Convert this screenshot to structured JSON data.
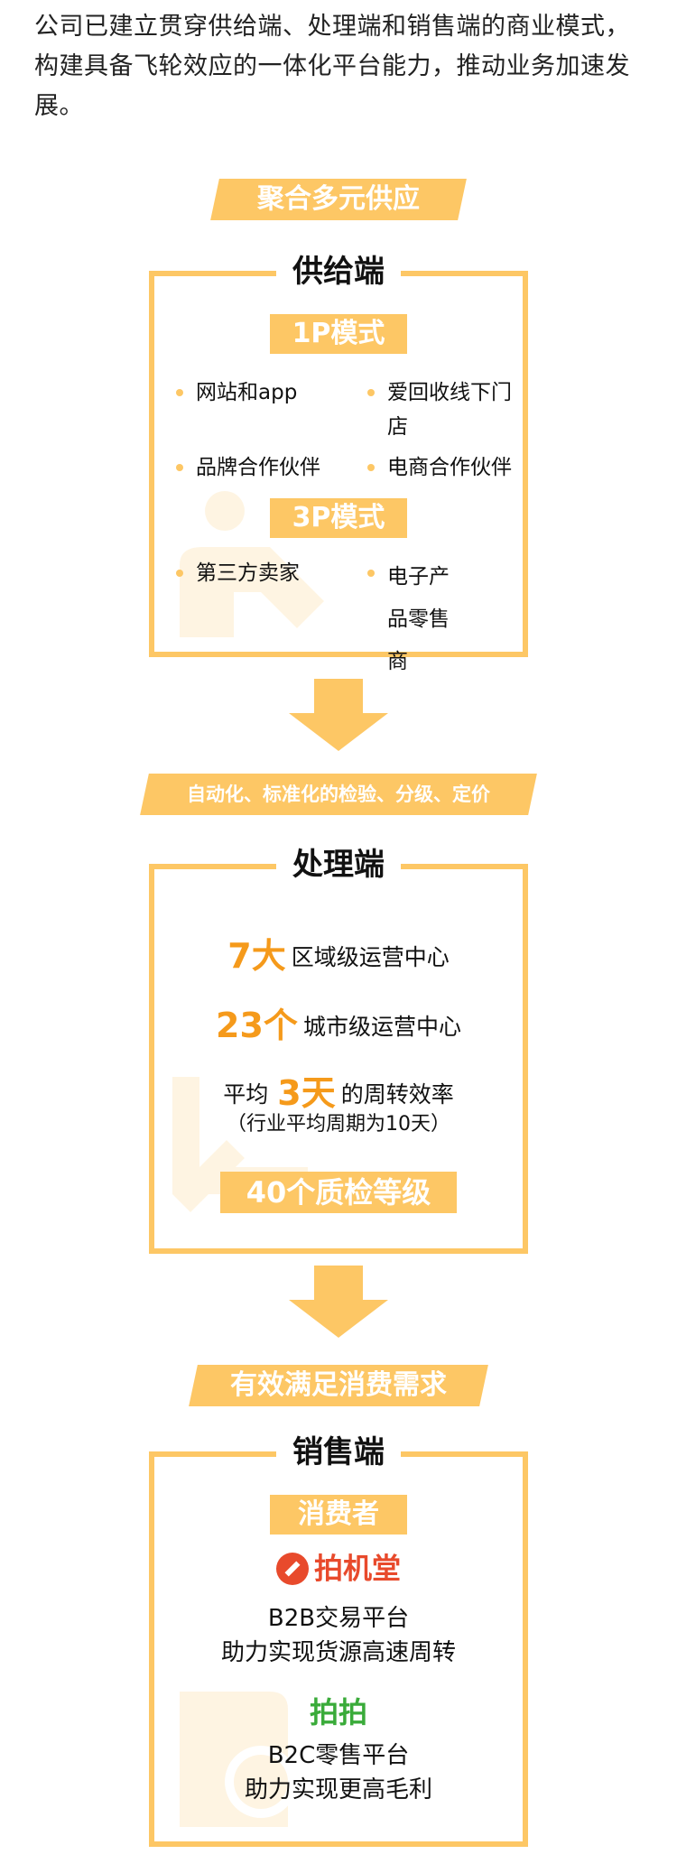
{
  "intro": "公司已建立贯穿供给端、处理端和销售端的商业模式，构建具备飞轮效应的一体化平台能力，推动业务加速发展。",
  "supply": {
    "banner": "聚合多元供应",
    "title": "供给端",
    "tag_1p": "1P模式",
    "items_1p": [
      "网站和app",
      "爱回收线下门店",
      "品牌合作伙伴",
      "电商合作伙伴"
    ],
    "tag_3p": "3P模式",
    "items_3p": [
      "第三方卖家",
      "电子产品零售商"
    ]
  },
  "processing": {
    "banner": "自动化、标准化的检验、分级、定价",
    "title": "处理端",
    "stat1_big": "7大",
    "stat1_text": "区域级运营中心",
    "stat2_big": "23个",
    "stat2_text": "城市级运营中心",
    "stat3_pre": "平均",
    "stat3_big": "3天",
    "stat3_text": "的周转效率",
    "stat3_note": "（行业平均周期为10天）",
    "grades": "40个质检等级"
  },
  "sales": {
    "banner": "有效满足消费需求",
    "title": "销售端",
    "tag": "消费者",
    "brand1": "拍机堂",
    "brand1_line1": "B2B交易平台",
    "brand1_line2": "助力实现货源高速周转",
    "brand2": "拍拍",
    "brand2_line1": "B2C零售平台",
    "brand2_line2": "助力实现更高毛利"
  },
  "colors": {
    "accent": "#fdc765",
    "highlight": "#f59a1b",
    "brand1": "#e84a2c",
    "brand2": "#3aab3a"
  }
}
